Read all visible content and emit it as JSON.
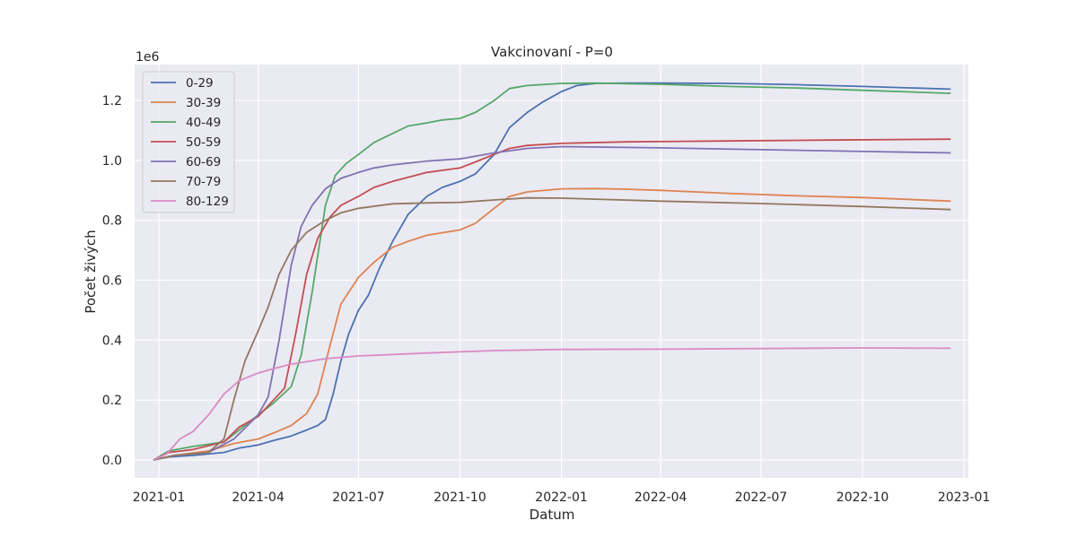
{
  "chart_data": {
    "type": "line",
    "title": "Vakcinovaní - P=0",
    "xlabel": "Datum",
    "ylabel": "Počet živých",
    "y_offset_label": "1e6",
    "y_scale": 1000000,
    "xlim": [
      "2020-12-10",
      "2023-01-05"
    ],
    "ylim": [
      -60000,
      1320000
    ],
    "x_ticks": [
      "2021-01",
      "2021-04",
      "2021-07",
      "2021-10",
      "2022-01",
      "2022-04",
      "2022-07",
      "2022-10",
      "2023-01"
    ],
    "y_ticks": [
      0,
      200000,
      400000,
      600000,
      800000,
      1000000,
      1200000
    ],
    "y_tick_labels": [
      "0.0",
      "0.2",
      "0.4",
      "0.6",
      "0.8",
      "1.0",
      "1.2"
    ],
    "grid": true,
    "legend_position": "top-left",
    "background": "#eaeaf2",
    "series": [
      {
        "name": "0-29",
        "color": "#4c72b0",
        "points": [
          [
            "2020-12-27",
            0
          ],
          [
            "2021-01-10",
            10000
          ],
          [
            "2021-02-01",
            15000
          ],
          [
            "2021-03-01",
            25000
          ],
          [
            "2021-03-15",
            40000
          ],
          [
            "2021-04-01",
            50000
          ],
          [
            "2021-04-15",
            65000
          ],
          [
            "2021-05-01",
            80000
          ],
          [
            "2021-05-15",
            100000
          ],
          [
            "2021-05-25",
            115000
          ],
          [
            "2021-06-01",
            135000
          ],
          [
            "2021-06-08",
            220000
          ],
          [
            "2021-06-15",
            330000
          ],
          [
            "2021-06-22",
            420000
          ],
          [
            "2021-07-01",
            500000
          ],
          [
            "2021-07-10",
            550000
          ],
          [
            "2021-07-20",
            640000
          ],
          [
            "2021-08-01",
            730000
          ],
          [
            "2021-08-15",
            820000
          ],
          [
            "2021-09-01",
            880000
          ],
          [
            "2021-09-15",
            910000
          ],
          [
            "2021-10-01",
            930000
          ],
          [
            "2021-10-15",
            955000
          ],
          [
            "2021-11-01",
            1020000
          ],
          [
            "2021-11-15",
            1110000
          ],
          [
            "2021-12-01",
            1160000
          ],
          [
            "2021-12-15",
            1195000
          ],
          [
            "2022-01-01",
            1230000
          ],
          [
            "2022-01-15",
            1250000
          ],
          [
            "2022-02-01",
            1257000
          ],
          [
            "2022-03-01",
            1258000
          ],
          [
            "2022-04-01",
            1258000
          ],
          [
            "2022-06-01",
            1257000
          ],
          [
            "2022-08-01",
            1253000
          ],
          [
            "2022-10-01",
            1247000
          ],
          [
            "2022-12-20",
            1238000
          ]
        ]
      },
      {
        "name": "30-39",
        "color": "#dd8452",
        "points": [
          [
            "2020-12-27",
            0
          ],
          [
            "2021-01-15",
            15000
          ],
          [
            "2021-02-15",
            30000
          ],
          [
            "2021-03-10",
            55000
          ],
          [
            "2021-04-01",
            70000
          ],
          [
            "2021-04-15",
            90000
          ],
          [
            "2021-05-01",
            115000
          ],
          [
            "2021-05-15",
            155000
          ],
          [
            "2021-05-25",
            220000
          ],
          [
            "2021-06-05",
            380000
          ],
          [
            "2021-06-15",
            520000
          ],
          [
            "2021-07-01",
            610000
          ],
          [
            "2021-07-15",
            660000
          ],
          [
            "2021-08-01",
            710000
          ],
          [
            "2021-08-15",
            730000
          ],
          [
            "2021-09-01",
            750000
          ],
          [
            "2021-10-01",
            768000
          ],
          [
            "2021-10-15",
            790000
          ],
          [
            "2021-11-01",
            840000
          ],
          [
            "2021-11-15",
            880000
          ],
          [
            "2021-12-01",
            895000
          ],
          [
            "2022-01-01",
            905000
          ],
          [
            "2022-02-01",
            906000
          ],
          [
            "2022-03-01",
            904000
          ],
          [
            "2022-04-01",
            900000
          ],
          [
            "2022-06-01",
            890000
          ],
          [
            "2022-08-01",
            882000
          ],
          [
            "2022-10-01",
            876000
          ],
          [
            "2022-12-20",
            864000
          ]
        ]
      },
      {
        "name": "40-49",
        "color": "#55a868",
        "points": [
          [
            "2020-12-27",
            0
          ],
          [
            "2021-01-10",
            30000
          ],
          [
            "2021-02-01",
            45000
          ],
          [
            "2021-03-01",
            60000
          ],
          [
            "2021-03-15",
            100000
          ],
          [
            "2021-04-01",
            150000
          ],
          [
            "2021-04-15",
            190000
          ],
          [
            "2021-05-01",
            245000
          ],
          [
            "2021-05-10",
            350000
          ],
          [
            "2021-05-20",
            560000
          ],
          [
            "2021-06-01",
            850000
          ],
          [
            "2021-06-10",
            950000
          ],
          [
            "2021-06-20",
            990000
          ],
          [
            "2021-07-01",
            1020000
          ],
          [
            "2021-07-15",
            1060000
          ],
          [
            "2021-08-01",
            1090000
          ],
          [
            "2021-08-15",
            1115000
          ],
          [
            "2021-09-01",
            1125000
          ],
          [
            "2021-09-15",
            1135000
          ],
          [
            "2021-10-01",
            1140000
          ],
          [
            "2021-10-15",
            1160000
          ],
          [
            "2021-11-01",
            1200000
          ],
          [
            "2021-11-15",
            1240000
          ],
          [
            "2021-12-01",
            1250000
          ],
          [
            "2022-01-01",
            1257000
          ],
          [
            "2022-02-01",
            1258000
          ],
          [
            "2022-04-01",
            1254000
          ],
          [
            "2022-06-01",
            1247000
          ],
          [
            "2022-08-01",
            1242000
          ],
          [
            "2022-10-01",
            1234000
          ],
          [
            "2022-12-20",
            1224000
          ]
        ]
      },
      {
        "name": "50-59",
        "color": "#c44e52",
        "points": [
          [
            "2020-12-27",
            0
          ],
          [
            "2021-01-10",
            25000
          ],
          [
            "2021-02-01",
            35000
          ],
          [
            "2021-03-01",
            60000
          ],
          [
            "2021-03-15",
            110000
          ],
          [
            "2021-04-01",
            145000
          ],
          [
            "2021-04-15",
            200000
          ],
          [
            "2021-04-25",
            240000
          ],
          [
            "2021-05-05",
            420000
          ],
          [
            "2021-05-15",
            620000
          ],
          [
            "2021-05-25",
            740000
          ],
          [
            "2021-06-05",
            810000
          ],
          [
            "2021-06-15",
            850000
          ],
          [
            "2021-07-01",
            880000
          ],
          [
            "2021-07-15",
            910000
          ],
          [
            "2021-08-01",
            930000
          ],
          [
            "2021-09-01",
            960000
          ],
          [
            "2021-10-01",
            975000
          ],
          [
            "2021-10-15",
            995000
          ],
          [
            "2021-11-01",
            1020000
          ],
          [
            "2021-11-15",
            1040000
          ],
          [
            "2021-12-01",
            1050000
          ],
          [
            "2022-01-01",
            1057000
          ],
          [
            "2022-03-01",
            1062000
          ],
          [
            "2022-06-01",
            1065000
          ],
          [
            "2022-09-01",
            1068000
          ],
          [
            "2022-12-20",
            1071000
          ]
        ]
      },
      {
        "name": "60-69",
        "color": "#8172b3",
        "points": [
          [
            "2020-12-27",
            0
          ],
          [
            "2021-01-15",
            15000
          ],
          [
            "2021-02-15",
            25000
          ],
          [
            "2021-03-10",
            70000
          ],
          [
            "2021-04-01",
            150000
          ],
          [
            "2021-04-10",
            210000
          ],
          [
            "2021-04-20",
            400000
          ],
          [
            "2021-05-01",
            650000
          ],
          [
            "2021-05-10",
            780000
          ],
          [
            "2021-05-20",
            850000
          ],
          [
            "2021-06-01",
            905000
          ],
          [
            "2021-06-15",
            940000
          ],
          [
            "2021-07-01",
            960000
          ],
          [
            "2021-07-15",
            975000
          ],
          [
            "2021-08-01",
            985000
          ],
          [
            "2021-09-01",
            998000
          ],
          [
            "2021-10-01",
            1005000
          ],
          [
            "2021-11-01",
            1025000
          ],
          [
            "2021-12-01",
            1040000
          ],
          [
            "2022-01-01",
            1046000
          ],
          [
            "2022-04-01",
            1042000
          ],
          [
            "2022-07-01",
            1036000
          ],
          [
            "2022-10-01",
            1030000
          ],
          [
            "2022-12-20",
            1025000
          ]
        ]
      },
      {
        "name": "70-79",
        "color": "#937860",
        "points": [
          [
            "2020-12-27",
            0
          ],
          [
            "2021-01-15",
            15000
          ],
          [
            "2021-02-15",
            25000
          ],
          [
            "2021-03-01",
            70000
          ],
          [
            "2021-03-10",
            200000
          ],
          [
            "2021-03-20",
            330000
          ],
          [
            "2021-04-01",
            430000
          ],
          [
            "2021-04-10",
            510000
          ],
          [
            "2021-04-20",
            620000
          ],
          [
            "2021-05-01",
            700000
          ],
          [
            "2021-05-15",
            760000
          ],
          [
            "2021-06-01",
            800000
          ],
          [
            "2021-06-15",
            825000
          ],
          [
            "2021-07-01",
            840000
          ],
          [
            "2021-08-01",
            855000
          ],
          [
            "2021-09-01",
            858000
          ],
          [
            "2021-10-01",
            860000
          ],
          [
            "2021-11-01",
            868000
          ],
          [
            "2021-12-01",
            875000
          ],
          [
            "2022-01-01",
            874000
          ],
          [
            "2022-04-01",
            864000
          ],
          [
            "2022-07-01",
            856000
          ],
          [
            "2022-10-01",
            846000
          ],
          [
            "2022-12-20",
            836000
          ]
        ]
      },
      {
        "name": "80-129",
        "color": "#da8bc3",
        "points": [
          [
            "2020-12-27",
            0
          ],
          [
            "2021-01-08",
            20000
          ],
          [
            "2021-01-20",
            70000
          ],
          [
            "2021-02-01",
            95000
          ],
          [
            "2021-02-15",
            150000
          ],
          [
            "2021-03-01",
            220000
          ],
          [
            "2021-03-15",
            265000
          ],
          [
            "2021-04-01",
            290000
          ],
          [
            "2021-04-15",
            305000
          ],
          [
            "2021-05-01",
            320000
          ],
          [
            "2021-06-01",
            338000
          ],
          [
            "2021-07-01",
            347000
          ],
          [
            "2021-09-01",
            357000
          ],
          [
            "2021-11-01",
            365000
          ],
          [
            "2022-01-01",
            369000
          ],
          [
            "2022-04-01",
            370000
          ],
          [
            "2022-07-01",
            372000
          ],
          [
            "2022-10-01",
            374000
          ],
          [
            "2022-12-20",
            373000
          ]
        ]
      }
    ]
  }
}
